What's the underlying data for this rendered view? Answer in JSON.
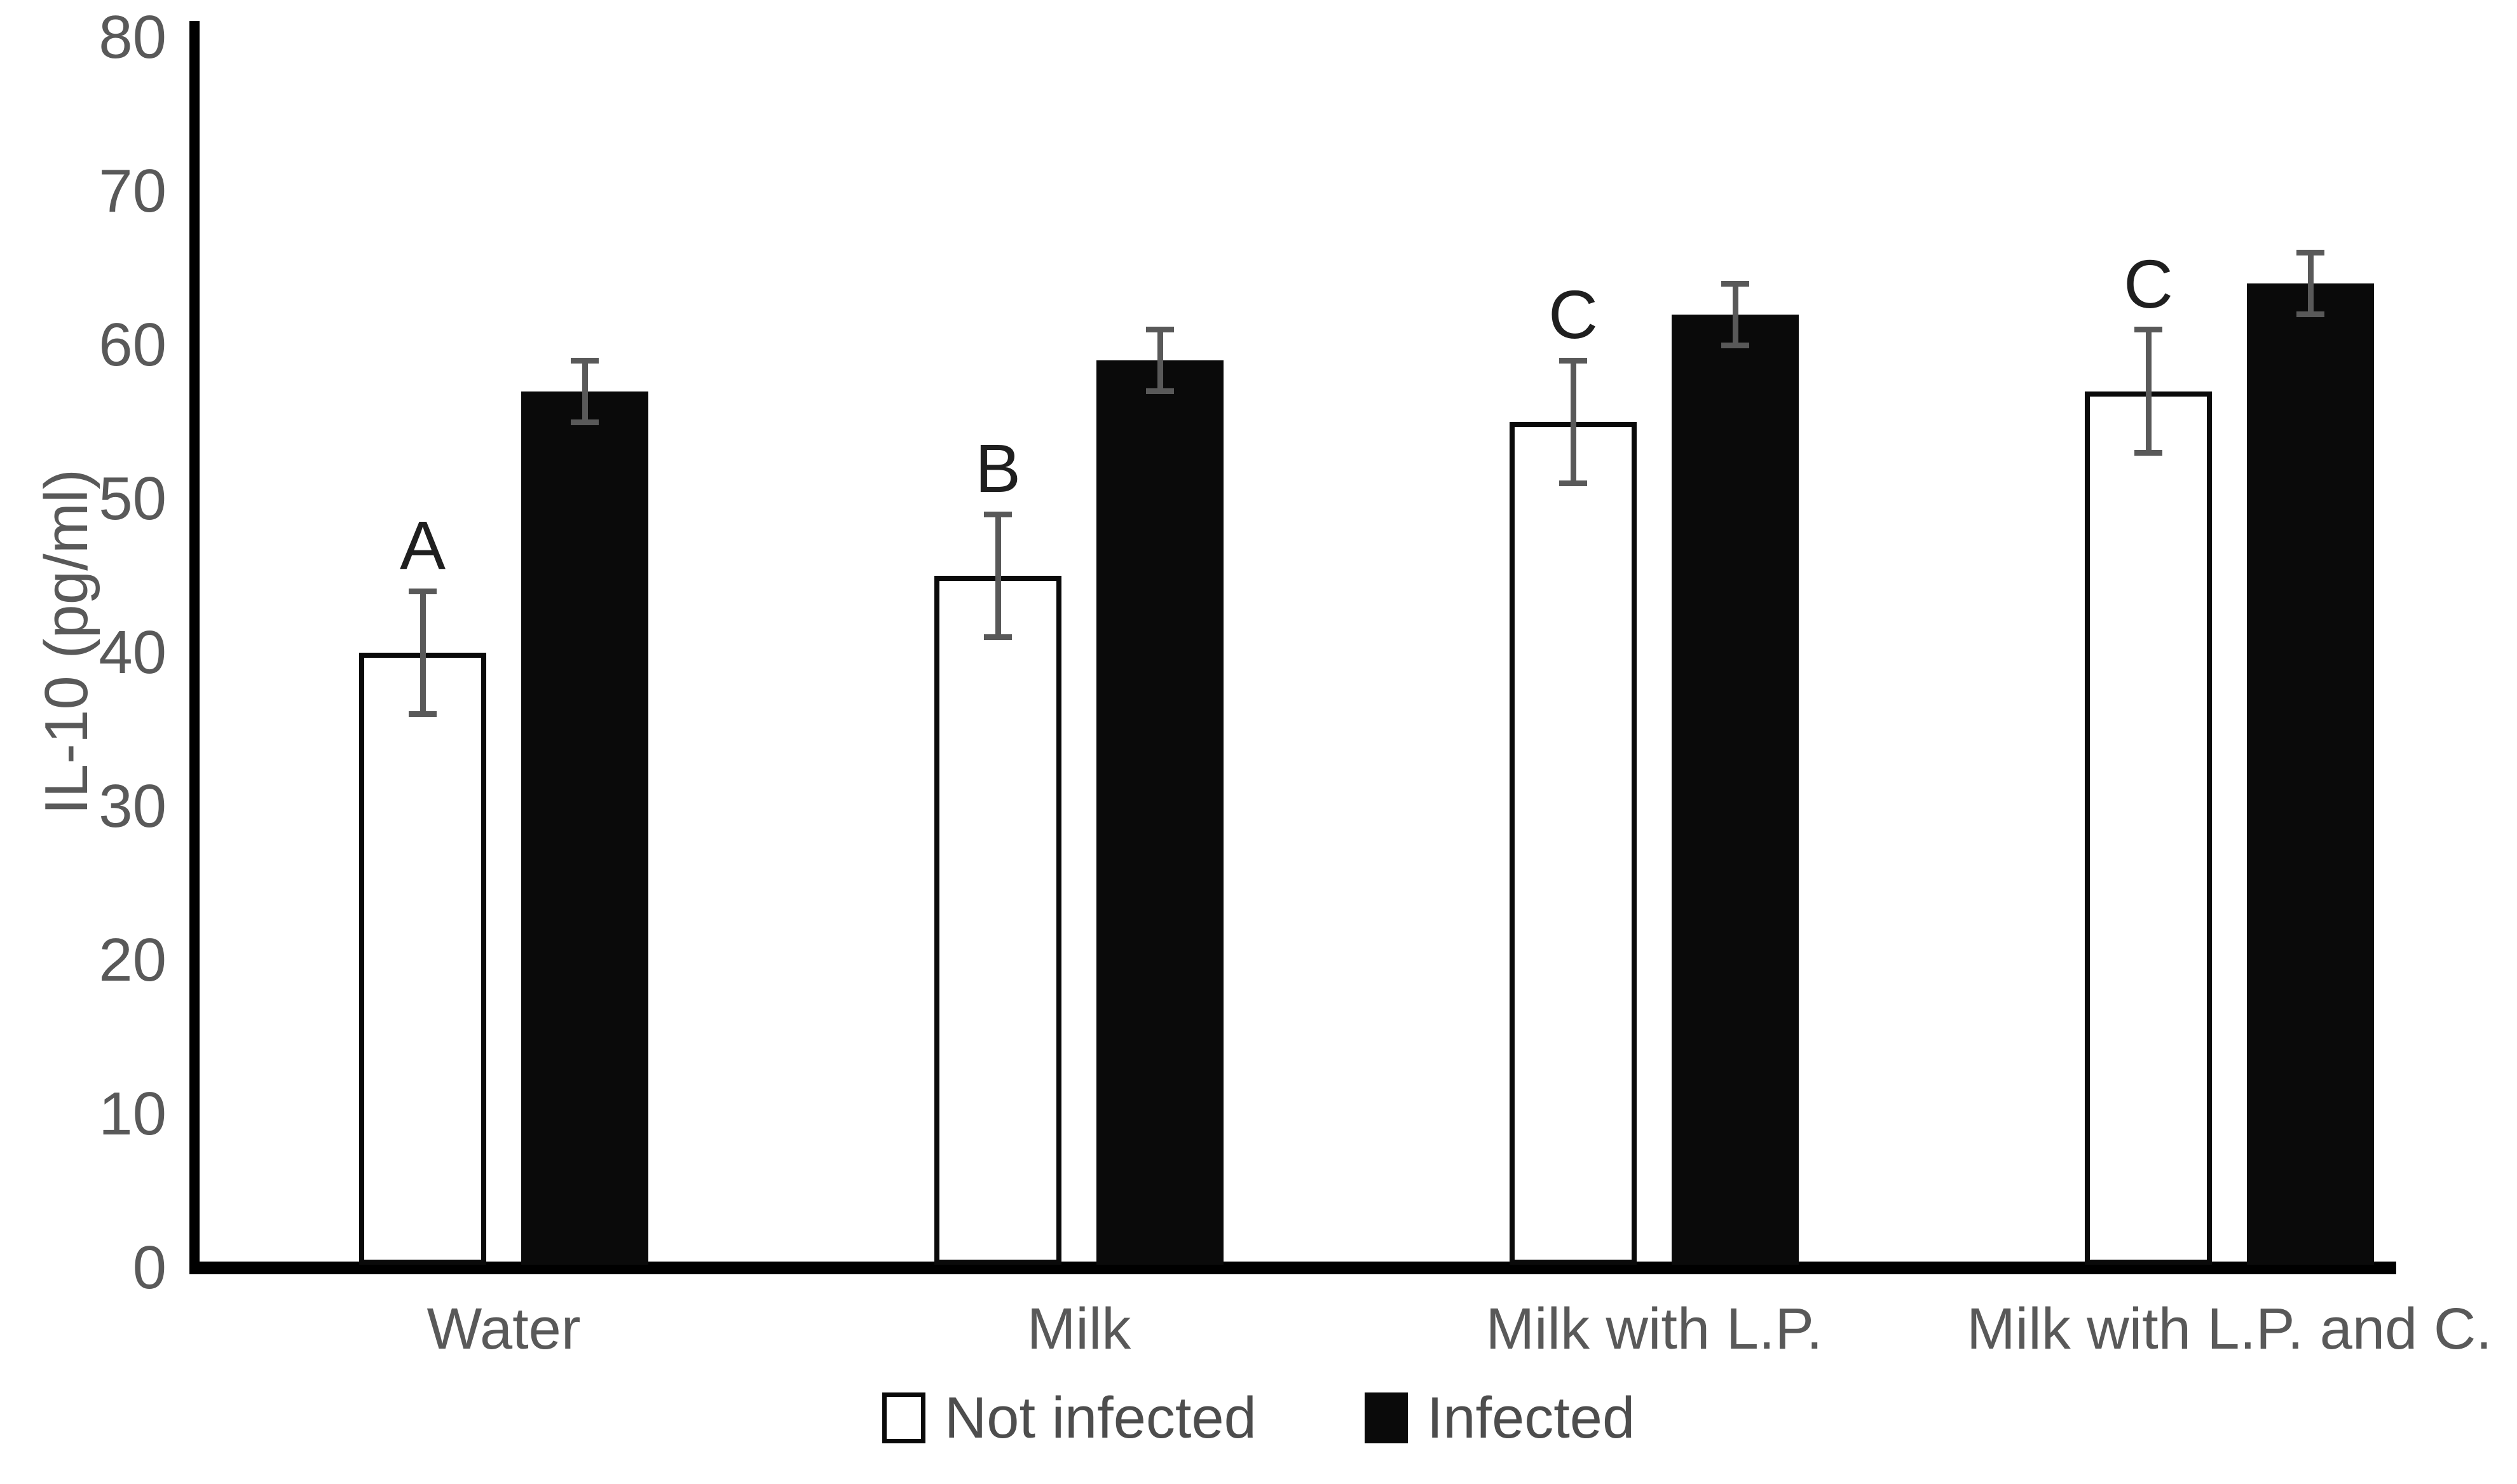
{
  "chart_data": {
    "type": "bar",
    "title": "",
    "ylabel": "IL-10 (pg/ml)",
    "xlabel": "",
    "ylim": [
      0,
      80
    ],
    "yticks": [
      0,
      10,
      20,
      30,
      40,
      50,
      60,
      70,
      80
    ],
    "grid": false,
    "legend_position": "bottom",
    "categories": [
      "Water",
      "Milk",
      "Milk with L.P.",
      "Milk with L.P. and C."
    ],
    "series": [
      {
        "name": "Not infected",
        "fill": "#ffffff",
        "outline": "#0a0a0a",
        "values": [
          40,
          45,
          55,
          57
        ],
        "errors": [
          4,
          4,
          4,
          4
        ],
        "letters": [
          "A",
          "B",
          "C",
          "C"
        ]
      },
      {
        "name": "Infected",
        "fill": "#0a0a0a",
        "outline": "#0a0a0a",
        "values": [
          57,
          59,
          62,
          64
        ],
        "errors": [
          2,
          2,
          2,
          2
        ],
        "letters": [
          "",
          "",
          "",
          ""
        ]
      }
    ]
  },
  "colors": {
    "error_bar": "#595959",
    "tick_text": "#595959",
    "category_text": "#595959",
    "letter_text": "#1f1f1f",
    "legend_text": "#4d4d4d",
    "axis": "#000000",
    "background": "#ffffff"
  }
}
